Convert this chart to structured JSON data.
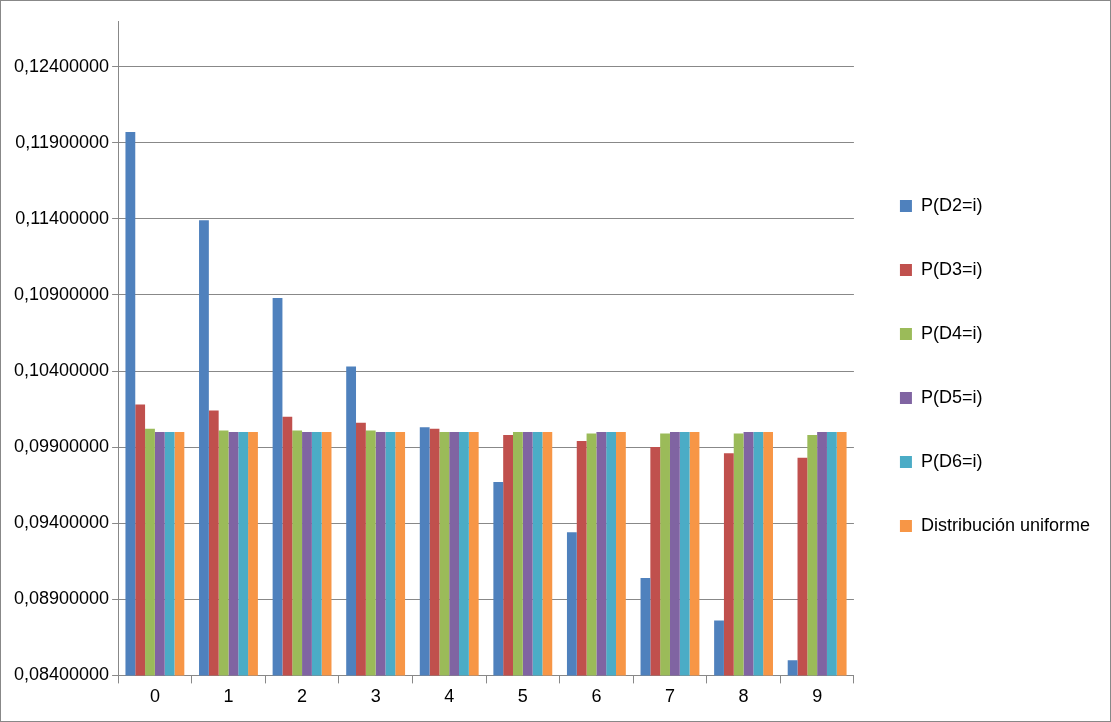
{
  "chart_data": {
    "type": "bar",
    "categories": [
      "0",
      "1",
      "2",
      "3",
      "4",
      "5",
      "6",
      "7",
      "8",
      "9"
    ],
    "series": [
      {
        "name": "P(D2=i)",
        "color": "#4f81bd",
        "values": [
          0.1197,
          0.1139,
          0.1088,
          0.1043,
          0.1003,
          0.0967,
          0.0934,
          0.0904,
          0.0876,
          0.085
        ]
      },
      {
        "name": "P(D3=i)",
        "color": "#c0504d",
        "values": [
          0.1018,
          0.1014,
          0.101,
          0.1006,
          0.1002,
          0.0998,
          0.0994,
          0.099,
          0.0986,
          0.0983
        ]
      },
      {
        "name": "P(D4=i)",
        "color": "#9bbb59",
        "values": [
          0.1002,
          0.1001,
          0.1001,
          0.1001,
          0.1,
          0.1,
          0.0999,
          0.0999,
          0.0999,
          0.0998
        ]
      },
      {
        "name": "P(D5=i)",
        "color": "#8064a2",
        "values": [
          0.1,
          0.1,
          0.1,
          0.1,
          0.1,
          0.1,
          0.1,
          0.1,
          0.1,
          0.1
        ]
      },
      {
        "name": "P(D6=i)",
        "color": "#4bacc6",
        "values": [
          0.1,
          0.1,
          0.1,
          0.1,
          0.1,
          0.1,
          0.1,
          0.1,
          0.1,
          0.1
        ]
      },
      {
        "name": "Distribución uniforme",
        "color": "#f79646",
        "values": [
          0.1,
          0.1,
          0.1,
          0.1,
          0.1,
          0.1,
          0.1,
          0.1,
          0.1,
          0.1
        ]
      }
    ],
    "ylim": [
      0.084,
      0.127
    ],
    "yticks": [
      {
        "value": 0.084,
        "label": "0,08400000"
      },
      {
        "value": 0.089,
        "label": "0,08900000"
      },
      {
        "value": 0.094,
        "label": "0,09400000"
      },
      {
        "value": 0.099,
        "label": "0,09900000"
      },
      {
        "value": 0.104,
        "label": "0,10400000"
      },
      {
        "value": 0.109,
        "label": "0,10900000"
      },
      {
        "value": 0.114,
        "label": "0,11400000"
      },
      {
        "value": 0.119,
        "label": "0,11900000"
      },
      {
        "value": 0.124,
        "label": "0,12400000"
      }
    ],
    "grid": "y",
    "legend": "right"
  }
}
